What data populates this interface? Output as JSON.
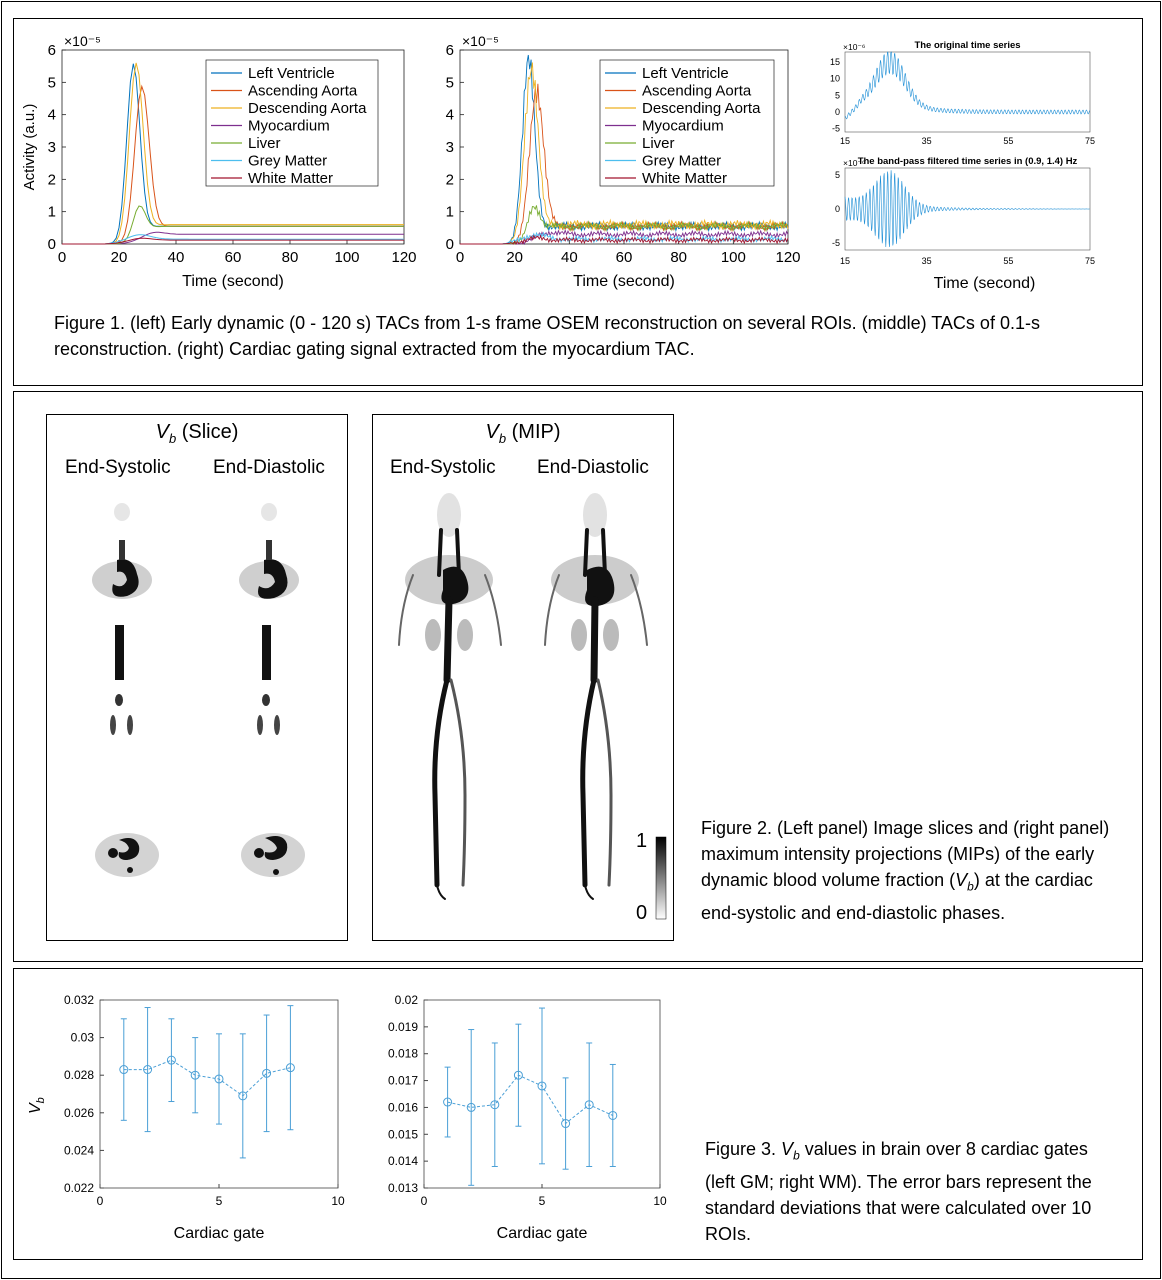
{
  "figure1": {
    "caption": "Figure 1. (left) Early dynamic (0 - 120 s) TACs from 1-s frame OSEM reconstruction on several ROIs. (middle) TACs of 0.1-s reconstruction. (right) Cardiac gating signal extracted from the myocardium TAC.",
    "left_chart": {
      "type": "line",
      "ylabel": "Activity (a.u.)",
      "xlabel": "Time (second)",
      "exponent": "×10⁻⁵",
      "xlim": [
        0,
        120
      ],
      "ylim": [
        0,
        6
      ],
      "xticks": [
        "0",
        "20",
        "40",
        "60",
        "80",
        "100",
        "120"
      ],
      "yticks": [
        "0",
        "1",
        "2",
        "3",
        "4",
        "5",
        "6"
      ],
      "legend": [
        "Left Ventricle",
        "Ascending Aorta",
        "Descending Aorta",
        "Myocardium",
        "Liver",
        "Grey Matter",
        "White Matter"
      ]
    },
    "middle_chart": {
      "type": "line",
      "xlabel": "Time (second)",
      "exponent": "×10⁻⁵",
      "xlim": [
        0,
        120
      ],
      "ylim": [
        0,
        6
      ],
      "xticks": [
        "0",
        "20",
        "40",
        "60",
        "80",
        "100",
        "120"
      ],
      "yticks": [
        "0",
        "1",
        "2",
        "3",
        "4",
        "5",
        "6"
      ],
      "legend": [
        "Left Ventricle",
        "Ascending Aorta",
        "Descending Aorta",
        "Myocardium",
        "Liver",
        "Grey Matter",
        "White Matter"
      ]
    },
    "right_chart": {
      "xlabel": "Time (second)",
      "top_title": "The original time series",
      "top_exponent": "×10⁻⁶",
      "top_yticks": [
        "15",
        "10",
        "5",
        "0",
        "-5"
      ],
      "top_xticks": [
        "15",
        "35",
        "55",
        "75"
      ],
      "bottom_title": "The band-pass filtered time series in (0.9, 1.4) Hz",
      "bottom_exponent": "×10⁻⁶",
      "bottom_yticks": [
        "5",
        "0",
        "-5"
      ],
      "bottom_xticks": [
        "15",
        "35",
        "55",
        "75"
      ]
    }
  },
  "figure2": {
    "slice_title_suffix": "(Slice)",
    "mip_title_suffix": "(MIP)",
    "vb_symbol": "V",
    "vb_sub": "b",
    "end_systolic": "End-Systolic",
    "end_diastolic": "End-Diastolic",
    "colorbar_max": "1",
    "colorbar_min": "0",
    "caption_parts": [
      "Figure 2. (Left panel) Image slices and (right panel) maximum intensity projections (MIPs) of the early dynamic blood volume fraction (",
      ") at the cardiac end-systolic and end-diastolic phases."
    ]
  },
  "figure3": {
    "caption_prefix": "Figure 3. ",
    "caption_rest": " values in brain over 8 cardiac gates (left GM; right WM). The error bars represent the standard deviations that were calculated over 10 ROIs.",
    "chart_data": [
      {
        "type": "scatter",
        "xlabel": "Cardiac gate",
        "ylabel": "Vb",
        "xlim": [
          0,
          10
        ],
        "ylim": [
          0.022,
          0.032
        ],
        "xticks": [
          "0",
          "5",
          "10"
        ],
        "yticks": [
          "0.032",
          "0.03",
          "0.028",
          "0.026",
          "0.024",
          "0.022"
        ],
        "x": [
          1,
          2,
          3,
          4,
          5,
          6,
          7,
          8
        ],
        "y": [
          0.0283,
          0.0283,
          0.0288,
          0.028,
          0.0278,
          0.0269,
          0.0281,
          0.0284
        ],
        "err": [
          0.0027,
          0.0033,
          0.0022,
          0.002,
          0.0024,
          0.0033,
          0.0031,
          0.0033
        ]
      },
      {
        "type": "scatter",
        "xlabel": "Cardiac gate",
        "ylabel": "",
        "xlim": [
          0,
          10
        ],
        "ylim": [
          0.013,
          0.02
        ],
        "xticks": [
          "0",
          "5",
          "10"
        ],
        "yticks": [
          "0.02",
          "0.019",
          "0.018",
          "0.017",
          "0.016",
          "0.015",
          "0.014",
          "0.013"
        ],
        "x": [
          1,
          2,
          3,
          4,
          5,
          6,
          7,
          8
        ],
        "y": [
          0.0162,
          0.016,
          0.0161,
          0.0172,
          0.0168,
          0.0154,
          0.0161,
          0.0157
        ],
        "err": [
          0.0013,
          0.0029,
          0.0023,
          0.0019,
          0.0029,
          0.0017,
          0.0023,
          0.0019
        ]
      }
    ]
  },
  "colors": {
    "lv": "#0072bd",
    "asc_aorta": "#d95319",
    "desc_aorta": "#edb120",
    "myocardium": "#7e2f8e",
    "liver": "#77ac30",
    "grey_matter": "#4dbeee",
    "white_matter": "#a2142f",
    "fig3_series": "#4a9fd6"
  }
}
